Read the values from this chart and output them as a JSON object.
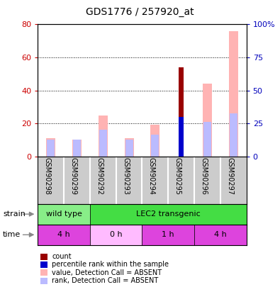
{
  "title": "GDS1776 / 257920_at",
  "samples": [
    "GSM90298",
    "GSM90299",
    "GSM90292",
    "GSM90293",
    "GSM90294",
    "GSM90295",
    "GSM90296",
    "GSM90297"
  ],
  "count_values": [
    0,
    0,
    0,
    0,
    0,
    54,
    0,
    0
  ],
  "rank_values": [
    0,
    0,
    0,
    0,
    0,
    30,
    0,
    0
  ],
  "pink_bar_values": [
    11,
    10,
    25,
    11,
    19,
    0,
    44,
    76
  ],
  "lavender_bar_values": [
    10,
    10,
    16,
    10,
    13,
    0,
    21,
    26
  ],
  "left_ylim": [
    0,
    80
  ],
  "right_ylim": [
    0,
    100
  ],
  "left_yticks": [
    0,
    20,
    40,
    60,
    80
  ],
  "right_yticks": [
    0,
    25,
    50,
    75,
    100
  ],
  "right_yticklabels": [
    "0",
    "25",
    "50",
    "75",
    "100%"
  ],
  "strain_groups": [
    {
      "label": "wild type",
      "start": 0,
      "end": 2,
      "color": "#88ee88"
    },
    {
      "label": "LEC2 transgenic",
      "start": 2,
      "end": 8,
      "color": "#44dd44"
    }
  ],
  "time_groups": [
    {
      "label": "4 h",
      "start": 0,
      "end": 2,
      "color": "#dd44dd"
    },
    {
      "label": "0 h",
      "start": 2,
      "end": 4,
      "color": "#ffbbff"
    },
    {
      "label": "1 h",
      "start": 4,
      "end": 6,
      "color": "#dd44dd"
    },
    {
      "label": "4 h",
      "start": 6,
      "end": 8,
      "color": "#dd44dd"
    }
  ],
  "count_color": "#990000",
  "rank_color": "#0000cc",
  "pink_color": "#ffb3b3",
  "lavender_color": "#bbbbff",
  "left_tick_color": "#cc0000",
  "right_tick_color": "#0000bb",
  "label_area_color": "#cccccc",
  "bar_width": 0.35,
  "count_bar_width": 0.18
}
